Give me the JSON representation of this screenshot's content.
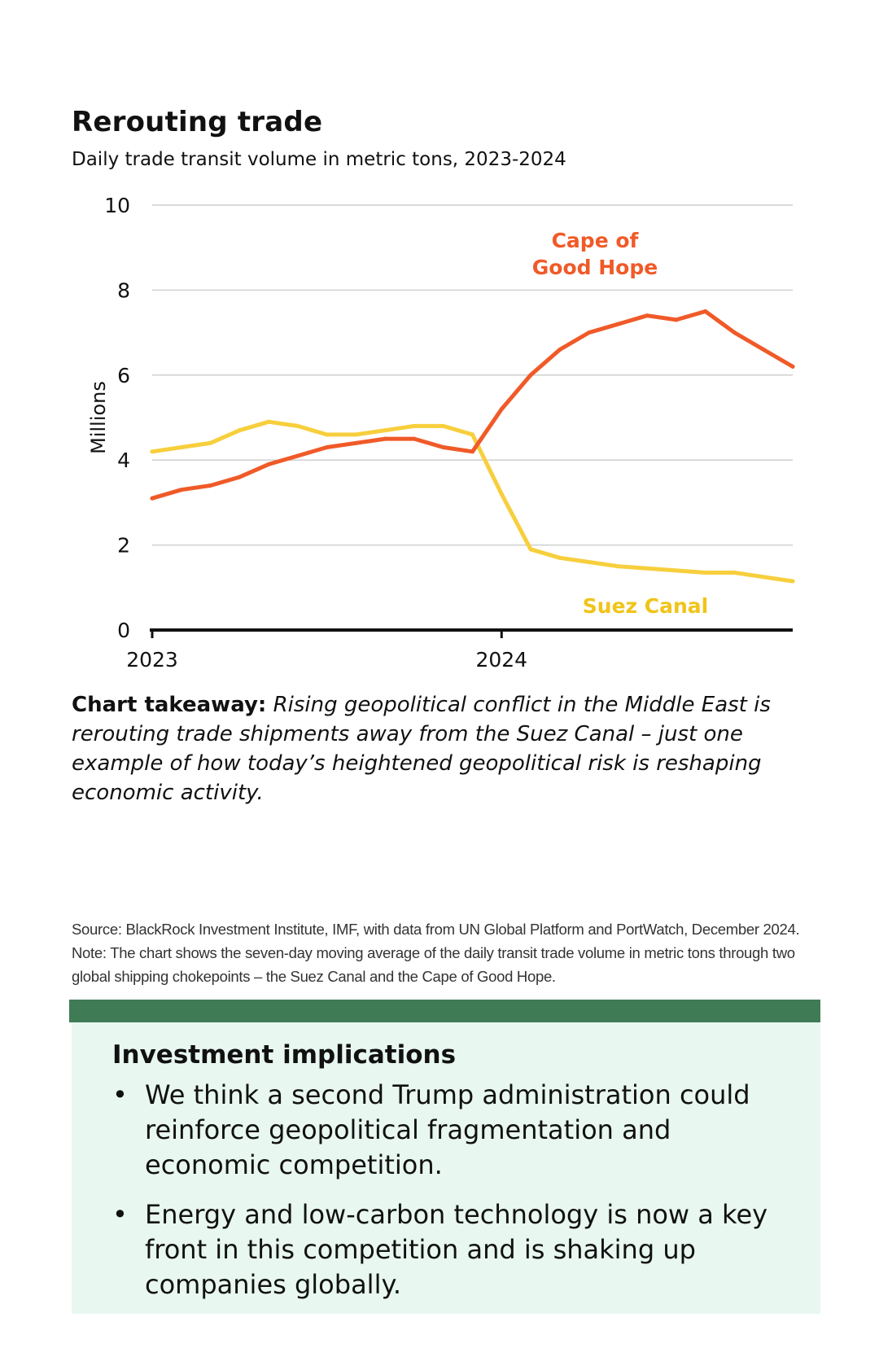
{
  "header": {
    "title": "Rerouting trade",
    "subtitle": "Daily trade transit volume in metric tons, 2023-2024"
  },
  "colors": {
    "cape": "#f05a28",
    "suez": "#f7cf3d",
    "green_bar": "#3f7c56",
    "panel_bg": "#e8f7f0"
  },
  "chart_data": {
    "type": "line",
    "title": "Rerouting trade",
    "subtitle": "Daily trade transit volume in metric tons, 2023-2024",
    "ylabel": "Millions",
    "ylim": [
      0,
      10
    ],
    "yticks": [
      "0",
      "2",
      "4",
      "6",
      "8",
      "10"
    ],
    "xticks": [
      "2023",
      "2024"
    ],
    "grid": true,
    "x": [
      "2023-01",
      "2023-02",
      "2023-03",
      "2023-04",
      "2023-05",
      "2023-06",
      "2023-07",
      "2023-08",
      "2023-09",
      "2023-10",
      "2023-11",
      "2023-12",
      "2024-01",
      "2024-02",
      "2024-03",
      "2024-04",
      "2024-05",
      "2024-06",
      "2024-07",
      "2024-08",
      "2024-09",
      "2024-10",
      "2024-11"
    ],
    "series": [
      {
        "name": "Cape of Good Hope",
        "color": "#f05a28",
        "values": [
          3.1,
          3.3,
          3.4,
          3.6,
          3.9,
          4.1,
          4.3,
          4.4,
          4.5,
          4.5,
          4.3,
          4.2,
          5.2,
          6.0,
          6.6,
          7.0,
          7.2,
          7.4,
          7.3,
          7.5,
          7.0,
          6.6,
          6.2
        ]
      },
      {
        "name": "Suez Canal",
        "color": "#f7cf3d",
        "values": [
          4.2,
          4.3,
          4.4,
          4.7,
          4.9,
          4.8,
          4.6,
          4.6,
          4.7,
          4.8,
          4.8,
          4.6,
          3.2,
          1.9,
          1.7,
          1.6,
          1.5,
          1.45,
          1.4,
          1.35,
          1.35,
          1.25,
          1.15
        ]
      }
    ]
  },
  "takeaway": {
    "label": "Chart takeaway:",
    "text": "Rising geopolitical conflict in the Middle East is rerouting trade shipments away from the Suez Canal – just one example of how today’s heightened geopolitical risk is reshaping economic activity."
  },
  "source": "Source: BlackRock Investment Institute, IMF, with data from UN Global Platform and PortWatch, December 2024. Note: The chart shows the seven-day moving average of the daily transit trade volume in metric tons through two global shipping chokepoints – the Suez Canal and the Cape of Good Hope.",
  "implications": {
    "heading": "Investment implications",
    "bullet_symbol": "•",
    "items": [
      "We think a second Trump administration could reinforce geopolitical fragmentation and economic competition.",
      "Energy and low-carbon technology is now a key front in this competition and is shaking up companies globally."
    ]
  }
}
